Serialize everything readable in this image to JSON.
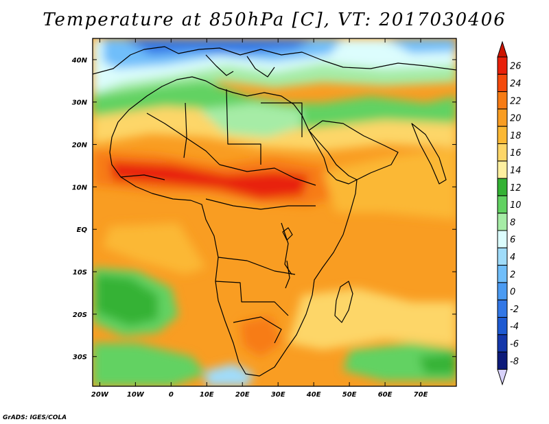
{
  "title": "Temperature at 850hPa [C], VT: 2017030406",
  "credit": "GrADS: IGES/COLA",
  "map": {
    "variable": "Temperature at 850hPa",
    "units": "C",
    "valid_time": "2017030406",
    "region": "Africa",
    "lon_range": [
      -22,
      80
    ],
    "lat_range": [
      -37,
      45
    ],
    "lon_ticks": [
      "20W",
      "10W",
      "0",
      "10E",
      "20E",
      "30E",
      "40E",
      "50E",
      "60E",
      "70E"
    ],
    "lat_ticks": [
      "40N",
      "30N",
      "20N",
      "10N",
      "EQ",
      "10S",
      "20S",
      "30S"
    ]
  },
  "colorbar": {
    "labels": [
      "26",
      "24",
      "22",
      "20",
      "18",
      "16",
      "14",
      "12",
      "10",
      "8",
      "6",
      "4",
      "2",
      "0",
      "-2",
      "-4",
      "-6",
      "-8"
    ],
    "colors": [
      "#e8200a",
      "#f44a0c",
      "#f77b14",
      "#f99d22",
      "#fbb834",
      "#fdd668",
      "#fef0a0",
      "#34b234",
      "#62d262",
      "#a6eca6",
      "#dcfdfd",
      "#a0dcfa",
      "#70befa",
      "#4b9bf2",
      "#3277e6",
      "#1e5ad2",
      "#1437aa",
      "#0c1a7a"
    ],
    "top_arrow_color": "#cc1400",
    "bottom_arrow_color": "#d8d2fa"
  }
}
